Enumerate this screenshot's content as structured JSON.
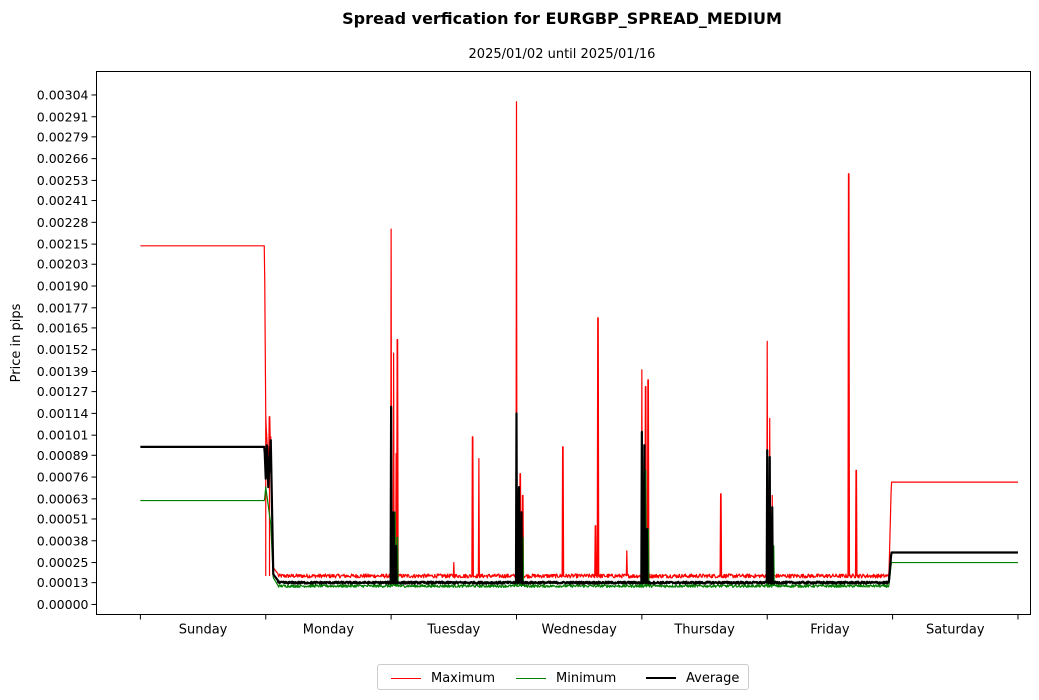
{
  "chart_data": {
    "type": "line",
    "title": "Spread verfication for EURGBP_SPREAD_MEDIUM",
    "subtitle": "2025/01/02 until 2025/01/16",
    "xlabel": "",
    "ylabel": "Price in pips",
    "ylim": [
      -6e-05,
      0.00318
    ],
    "xlim": [
      -0.35,
      7.1
    ],
    "ytick_labels": [
      "0.00000",
      "0.00013",
      "0.00025",
      "0.00038",
      "0.00051",
      "0.00063",
      "0.00076",
      "0.00089",
      "0.00101",
      "0.00114",
      "0.00127",
      "0.00139",
      "0.00152",
      "0.00165",
      "0.00177",
      "0.00190",
      "0.00203",
      "0.00215",
      "0.00228",
      "0.00241",
      "0.00253",
      "0.00266",
      "0.00279",
      "0.00291",
      "0.00304"
    ],
    "categories": [
      "Sunday",
      "Monday",
      "Tuesday",
      "Wednesday",
      "Thursday",
      "Friday",
      "Saturday"
    ],
    "grid": false,
    "legend_position": "bottom-center",
    "series": [
      {
        "name": "Maximum",
        "color": "#ff0000",
        "stroke": 1.2,
        "baseline": 0.00017,
        "noise": 1.2e-05,
        "points": [
          [
            0.0,
            0.00214
          ],
          [
            0.99,
            0.00214
          ],
          [
            1.0,
            0.0011
          ],
          [
            1.02,
            0.00085
          ],
          [
            1.04,
            0.001
          ],
          [
            1.06,
            0.00022
          ],
          [
            1.1,
            0.00018
          ],
          [
            5.97,
            0.00015
          ],
          [
            5.99,
            0.00073
          ],
          [
            7.0,
            0.00073
          ]
        ],
        "spikes": [
          [
            1.0,
            0.00113
          ],
          [
            1.03,
            0.00112
          ],
          [
            2.0,
            0.00224
          ],
          [
            2.02,
            0.0015
          ],
          [
            2.05,
            0.00158
          ],
          [
            2.04,
            0.0009
          ],
          [
            2.5,
            0.00025
          ],
          [
            2.65,
            0.001
          ],
          [
            2.7,
            0.00087
          ],
          [
            3.0,
            0.003
          ],
          [
            3.03,
            0.00078
          ],
          [
            3.05,
            0.00065
          ],
          [
            3.37,
            0.00094
          ],
          [
            3.63,
            0.00047
          ],
          [
            3.65,
            0.00171
          ],
          [
            3.88,
            0.00032
          ],
          [
            4.0,
            0.0014
          ],
          [
            4.03,
            0.0013
          ],
          [
            4.05,
            0.00134
          ],
          [
            4.63,
            0.00066
          ],
          [
            5.0,
            0.00157
          ],
          [
            5.02,
            0.00111
          ],
          [
            5.04,
            0.00065
          ],
          [
            5.65,
            0.00257
          ],
          [
            5.71,
            0.0008
          ]
        ]
      },
      {
        "name": "Minimum",
        "color": "#008000",
        "stroke": 1.2,
        "baseline": 0.00011,
        "noise": 8e-06,
        "points": [
          [
            0.0,
            0.00062
          ],
          [
            0.99,
            0.00062
          ],
          [
            1.0,
            0.0007
          ],
          [
            1.04,
            0.00048
          ],
          [
            1.06,
            0.00016
          ],
          [
            1.1,
            0.00011
          ],
          [
            5.97,
            0.00011
          ],
          [
            5.99,
            0.00025
          ],
          [
            7.0,
            0.00025
          ]
        ],
        "spikes": [
          [
            2.0,
            0.0009
          ],
          [
            2.03,
            0.00055
          ],
          [
            2.05,
            0.0004
          ],
          [
            3.0,
            0.00097
          ],
          [
            3.03,
            0.0005
          ],
          [
            3.05,
            0.0004
          ],
          [
            4.0,
            0.00095
          ],
          [
            4.03,
            0.0008
          ],
          [
            4.05,
            0.00045
          ],
          [
            5.0,
            0.0008
          ],
          [
            5.03,
            0.0005
          ],
          [
            5.05,
            0.00035
          ]
        ]
      },
      {
        "name": "Average",
        "color": "#000000",
        "stroke": 2.2,
        "baseline": 0.00013,
        "noise": 6e-06,
        "points": [
          [
            0.0,
            0.00094
          ],
          [
            0.99,
            0.00094
          ],
          [
            1.0,
            0.00075
          ],
          [
            1.01,
            0.001
          ],
          [
            1.02,
            0.0007
          ],
          [
            1.04,
            0.00098
          ],
          [
            1.06,
            0.00018
          ],
          [
            1.1,
            0.00014
          ],
          [
            5.97,
            0.00013
          ],
          [
            5.99,
            0.00031
          ],
          [
            7.0,
            0.00031
          ]
        ],
        "spikes": [
          [
            2.0,
            0.00118
          ],
          [
            2.02,
            0.00055
          ],
          [
            2.04,
            0.00035
          ],
          [
            3.0,
            0.00114
          ],
          [
            3.02,
            0.0007
          ],
          [
            3.04,
            0.00055
          ],
          [
            4.0,
            0.00103
          ],
          [
            4.02,
            0.00095
          ],
          [
            4.04,
            0.00045
          ],
          [
            5.0,
            0.00092
          ],
          [
            5.02,
            0.00088
          ],
          [
            5.04,
            0.00058
          ]
        ]
      }
    ]
  }
}
